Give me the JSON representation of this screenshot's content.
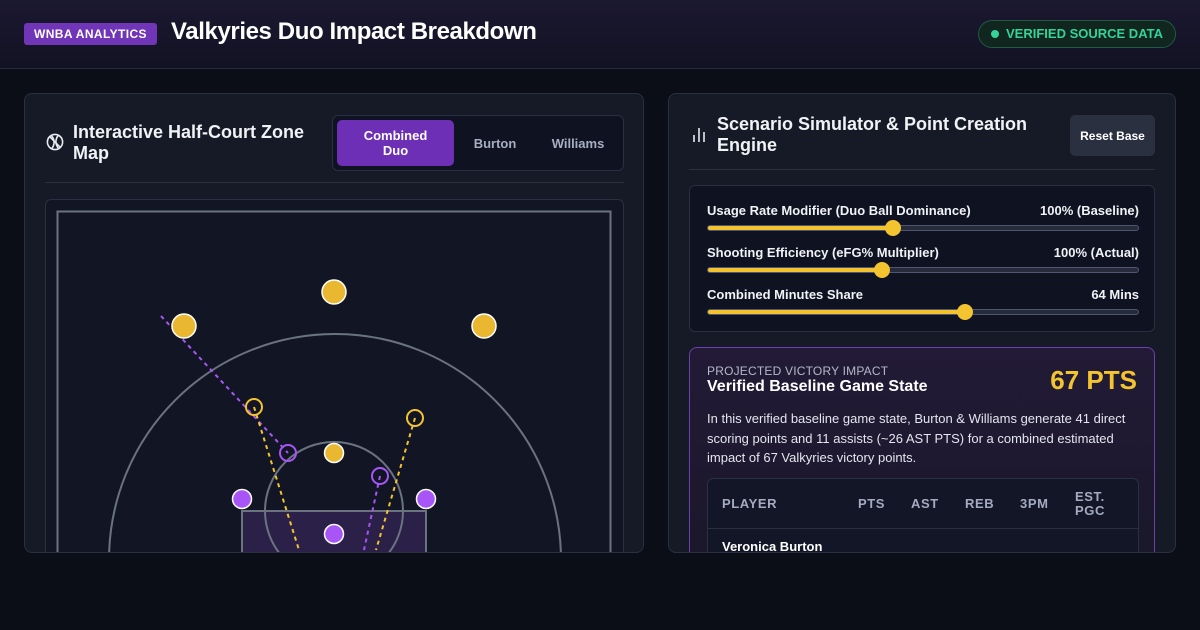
{
  "header": {
    "brand_badge": "WNBA ANALYTICS",
    "title": "Valkyries Duo Impact Breakdown",
    "verified_label": "VERIFIED SOURCE DATA",
    "colors": {
      "brand": "#7135b8",
      "verified": "#34d399"
    }
  },
  "zone_map": {
    "title": "Interactive Half-Court Zone Map",
    "icon": "basketball-icon",
    "tabs": [
      {
        "label": "Combined Duo",
        "active": true
      },
      {
        "label": "Burton",
        "active": false
      },
      {
        "label": "Williams",
        "active": false
      }
    ],
    "colors": {
      "burton": "#f4c430",
      "williams": "#a855f7",
      "court_line": "#6b7280"
    }
  },
  "simulator": {
    "title": "Scenario Simulator & Point Creation Engine",
    "icon": "bar-chart-icon",
    "reset_label": "Reset Base",
    "sliders": [
      {
        "label": "Usage Rate Modifier (Duo Ball Dominance)",
        "value_text": "100% (Baseline)",
        "level": 0.43
      },
      {
        "label": "Shooting Efficiency (eFG% Multiplier)",
        "value_text": "100% (Actual)",
        "level": 0.405
      },
      {
        "label": "Combined Minutes Share",
        "value_text": "64 Mins",
        "level": 0.597
      }
    ],
    "accent": "#f4c430"
  },
  "impact": {
    "kicker": "PROJECTED VICTORY IMPACT",
    "title": "Verified Baseline Game State",
    "points": "67 PTS",
    "description": "In this verified baseline game state, Burton & Williams generate 41 direct scoring points and 11 assists (~26 AST PTS) for a combined estimated impact of 67 Valkyries victory points.",
    "table": {
      "columns": [
        "PLAYER",
        "PTS",
        "AST",
        "REB",
        "3PM",
        "EST. PGC"
      ],
      "first_row_player": "Veronica Burton"
    }
  }
}
